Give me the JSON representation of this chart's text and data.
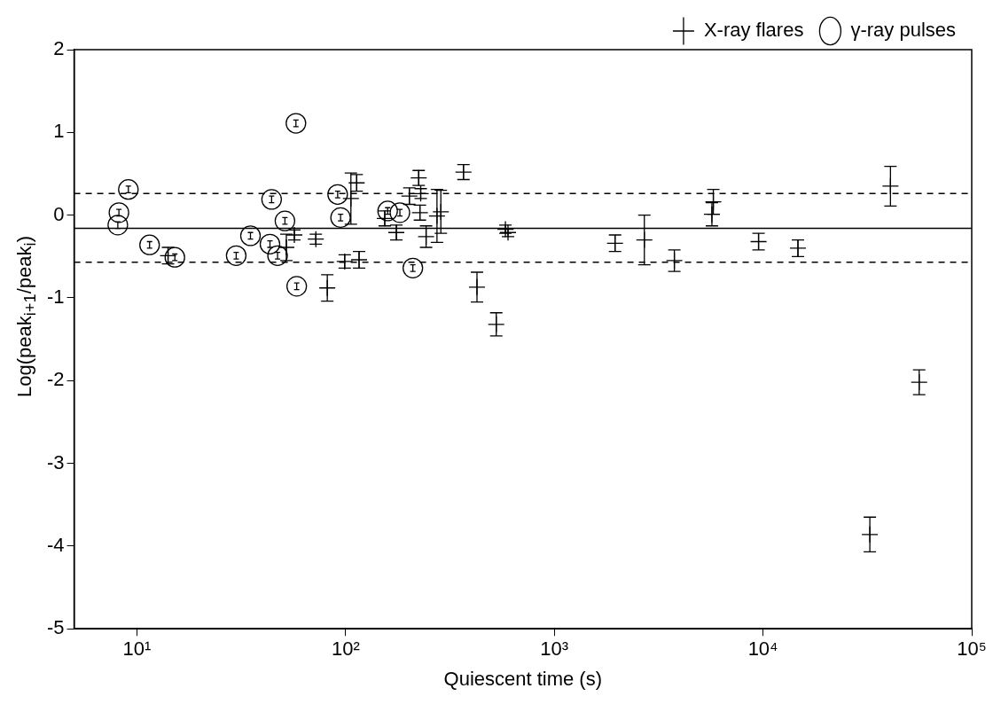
{
  "chart_data": {
    "type": "scatter",
    "xlabel": "Quiescent time (s)",
    "ylabel": "Log(peak$_{i+1}$/peak$_{i}$)",
    "log": "x",
    "xlim": [
      5,
      100000
    ],
    "xticks": [
      {
        "value": 10,
        "label": "10¹"
      },
      {
        "value": 100,
        "label": "10²"
      },
      {
        "value": 1000,
        "label": "10³"
      },
      {
        "value": 10000,
        "label": "10⁴"
      },
      {
        "value": 100000,
        "label": "10⁵"
      }
    ],
    "ylim": [
      -5,
      2
    ],
    "yticks": [
      -5,
      -4,
      -3,
      -2,
      -1,
      0,
      1,
      2
    ],
    "grid": false,
    "legend": "top right",
    "ref_lines": [
      {
        "axis": "y",
        "value": -0.16,
        "line_style": "solid",
        "color": "#000000"
      },
      {
        "axis": "y",
        "value": 0.26,
        "line_style": "dashed",
        "color": "#000000"
      },
      {
        "axis": "y",
        "value": -0.57,
        "line_style": "dashed",
        "color": "#000000"
      }
    ],
    "series": [
      {
        "name": "X-ray flares",
        "color": "#000000",
        "marker": "cross",
        "x": [
          14.1,
          52,
          56.8,
          72,
          81.7,
          99,
          106,
          113,
          116,
          154,
          175,
          202,
          224,
          227,
          229,
          243,
          274,
          286,
          367,
          426,
          527,
          583,
          600,
          1954,
          2700,
          3760,
          5690,
          5780,
          9520,
          14700,
          32500,
          40800,
          56000
        ],
        "values": [
          -0.49,
          -0.39,
          -0.24,
          -0.29,
          -0.88,
          -0.56,
          0.2,
          0.39,
          -0.54,
          -0.04,
          -0.21,
          0.23,
          0.45,
          0.03,
          0.26,
          -0.26,
          -0.01,
          0.04,
          0.52,
          -0.87,
          -1.32,
          -0.17,
          -0.21,
          -0.34,
          -0.3,
          -0.55,
          0.01,
          0.16,
          -0.32,
          -0.4,
          -3.86,
          0.35,
          -2.02
        ],
        "errors": [
          0.1,
          0.16,
          0.06,
          0.06,
          0.16,
          0.08,
          0.31,
          0.1,
          0.1,
          0.09,
          0.09,
          0.1,
          0.09,
          0.09,
          0.06,
          0.13,
          0.32,
          0.26,
          0.09,
          0.18,
          0.14,
          0.05,
          0.05,
          0.1,
          0.3,
          0.13,
          0.14,
          0.15,
          0.1,
          0.1,
          0.21,
          0.24,
          0.15
        ]
      },
      {
        "name": "γ-ray pulses",
        "color": "#000000",
        "marker": "circle",
        "x": [
          8.1,
          8.2,
          9.1,
          11.5,
          15.2,
          29.9,
          35,
          43.4,
          44.2,
          47.2,
          51.2,
          57.8,
          58.3,
          91.6,
          94.6,
          159,
          182,
          210
        ],
        "values": [
          -0.12,
          0.03,
          0.31,
          -0.36,
          -0.51,
          -0.49,
          -0.25,
          -0.35,
          0.19,
          -0.49,
          -0.07,
          1.11,
          -0.86,
          0.25,
          -0.03,
          0.05,
          0.03,
          -0.64
        ],
        "errors": [
          0.04,
          0.04,
          0.04,
          0.04,
          0.04,
          0.04,
          0.04,
          0.04,
          0.04,
          0.04,
          0.04,
          0.04,
          0.04,
          0.04,
          0.04,
          0.04,
          0.04,
          0.04
        ]
      }
    ]
  }
}
